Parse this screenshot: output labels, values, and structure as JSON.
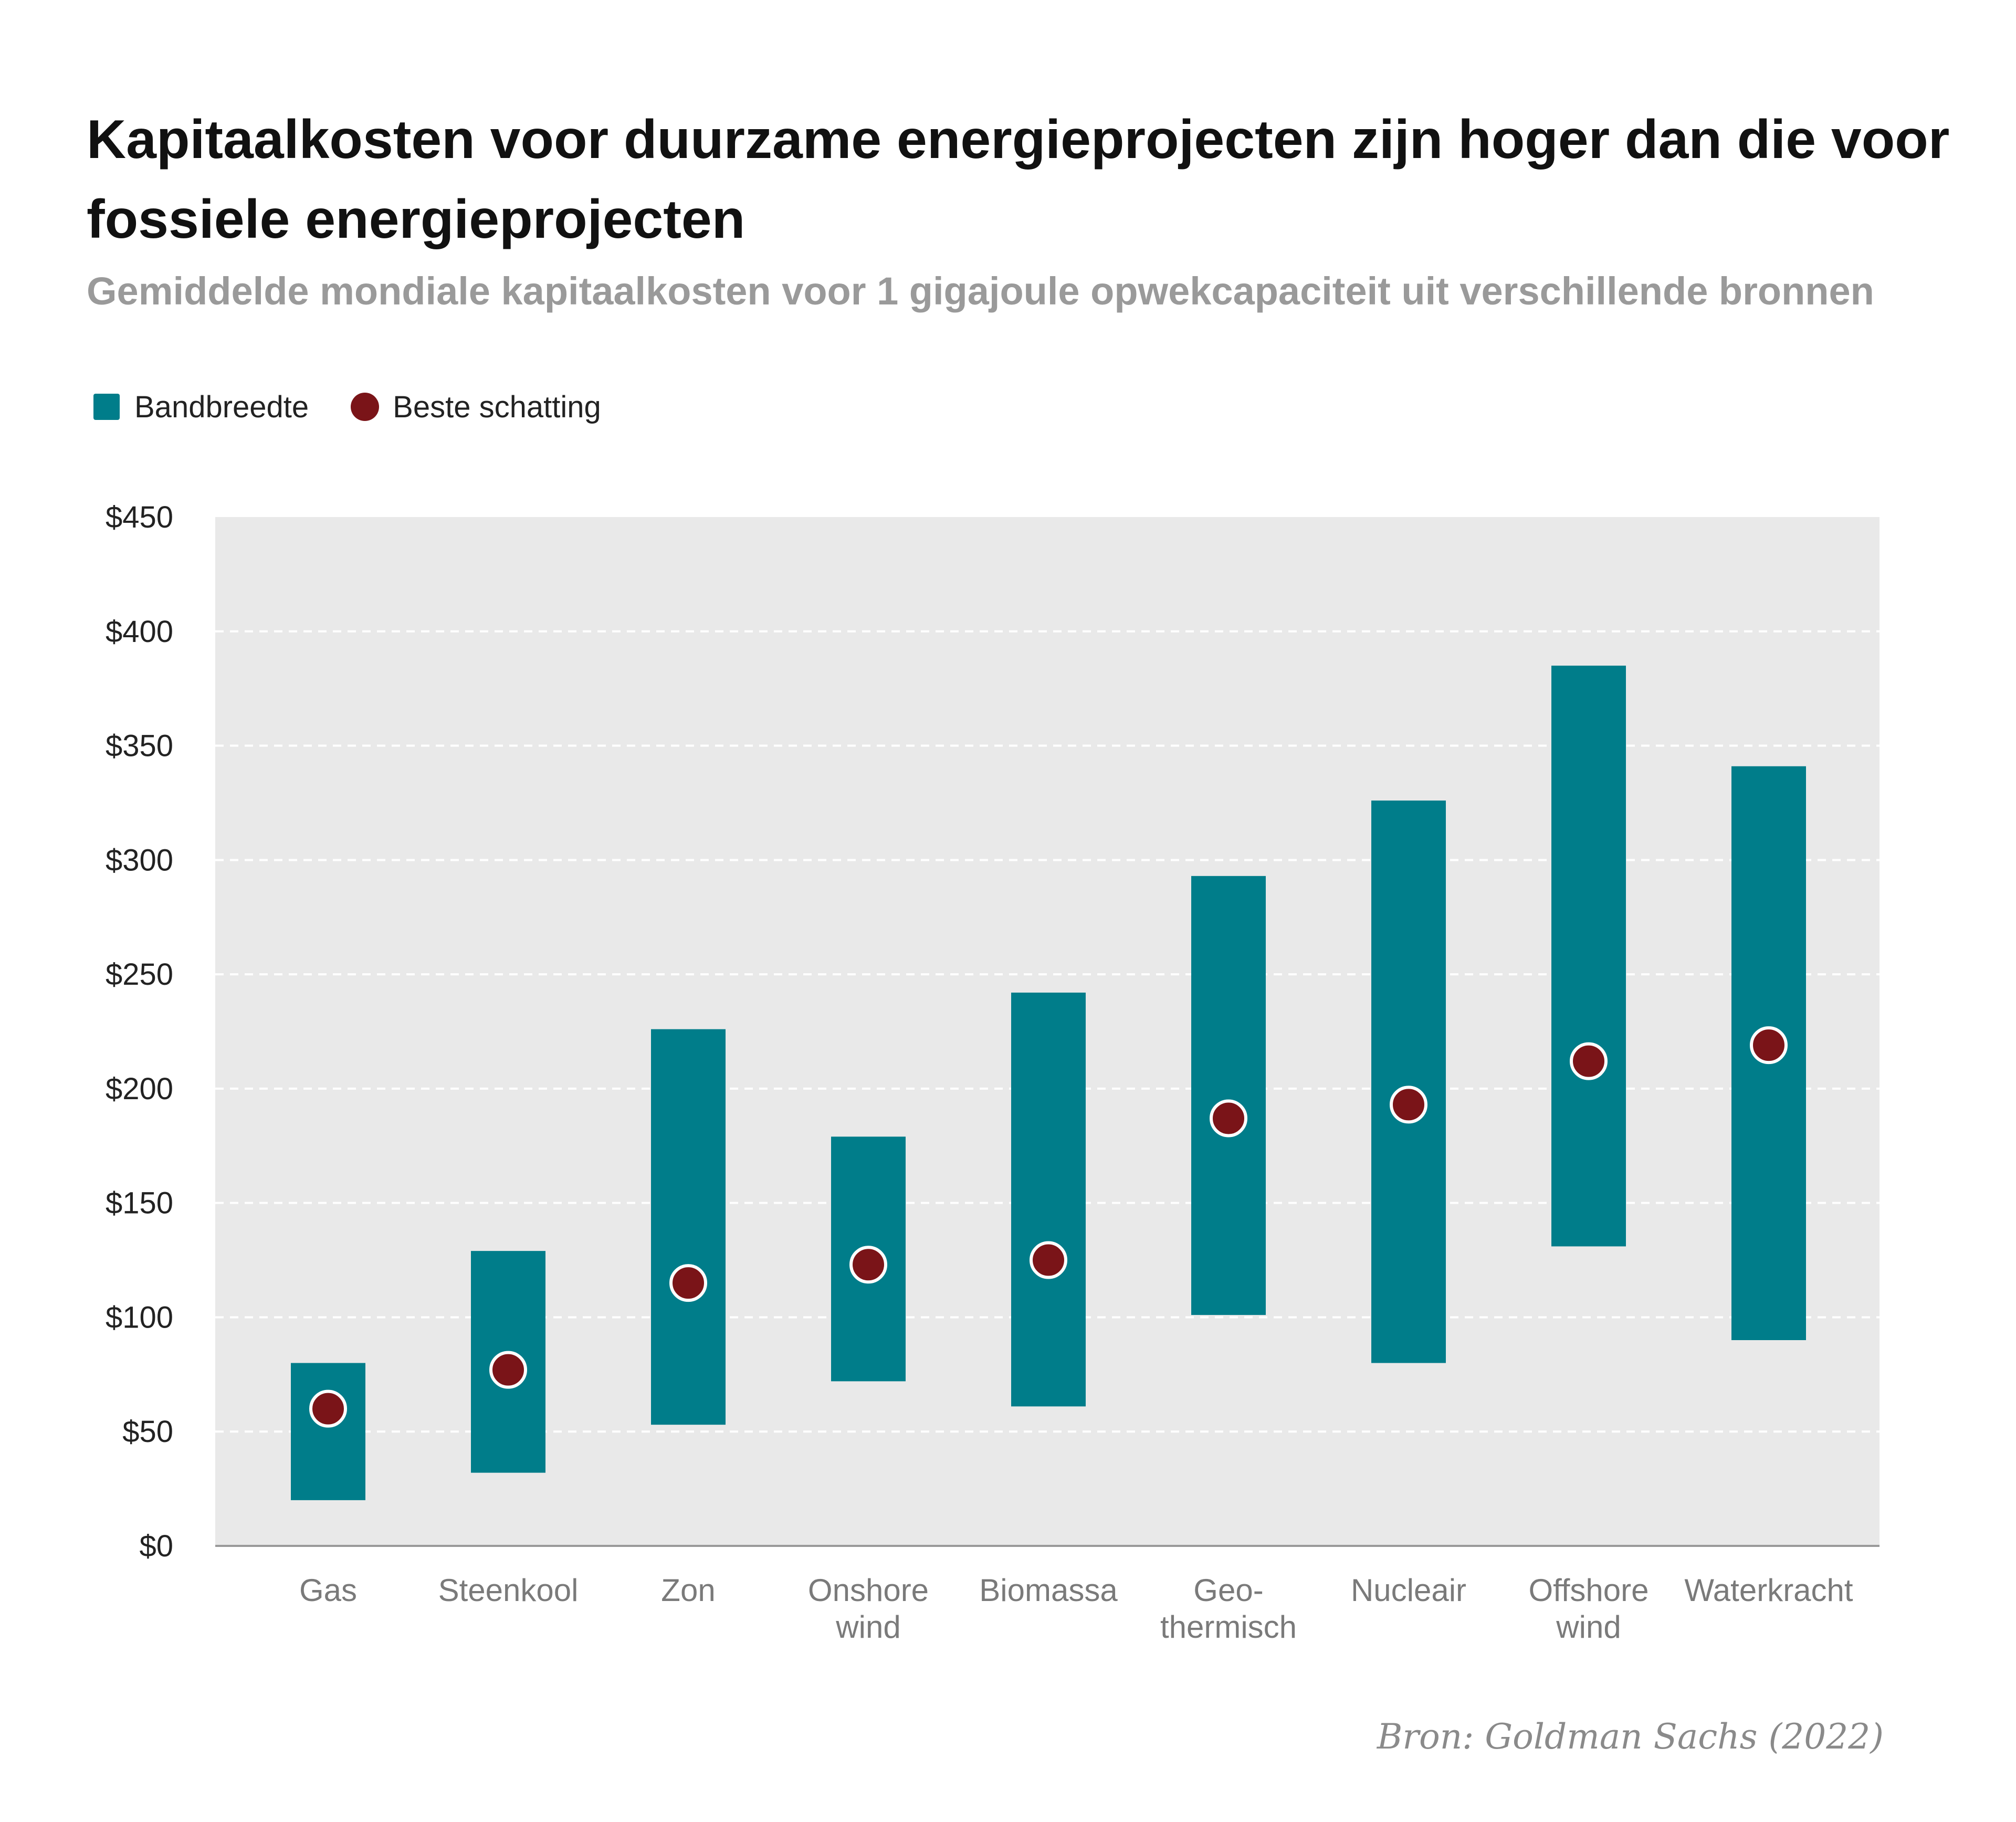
{
  "title": "Kapitaalkosten voor duurzame energieprojecten zijn hoger dan die voor fossiele energieprojecten",
  "subtitle": "Gemiddelde mondiale kapitaalkosten voor 1 gigajoule opwekcapaciteit uit verschillende bronnen",
  "legend": {
    "band": "Bandbreedte",
    "best": "Beste schatting"
  },
  "source": "Bron: Goldman Sachs (2022)",
  "colors": {
    "band": "#007d8a",
    "best": "#7a1418",
    "plot_background": "#e9e9e9",
    "grid": "#ffffff"
  },
  "chart_data": {
    "type": "range-bar",
    "categories": [
      [
        "Gas"
      ],
      [
        "Steenkool"
      ],
      [
        "Zon"
      ],
      [
        "Onshore",
        "wind"
      ],
      [
        "Biomassa"
      ],
      [
        "Geo-",
        "thermisch"
      ],
      [
        "Nucleair"
      ],
      [
        "Offshore",
        "wind"
      ],
      [
        "Waterkracht"
      ]
    ],
    "series": [
      {
        "name": "Bandbreedte",
        "low": [
          20,
          32,
          53,
          72,
          61,
          101,
          80,
          131,
          90
        ],
        "high": [
          80,
          129,
          226,
          179,
          242,
          293,
          326,
          385,
          341
        ]
      },
      {
        "name": "Beste schatting",
        "values": [
          60,
          77,
          115,
          123,
          125,
          187,
          193,
          212,
          219
        ]
      }
    ],
    "ylim": [
      0,
      450
    ],
    "yticks": [
      0,
      50,
      100,
      150,
      200,
      250,
      300,
      350,
      400,
      450
    ],
    "ytick_labels": [
      "$0",
      "$50",
      "$100",
      "$150",
      "$200",
      "$250",
      "$300",
      "$350",
      "$400",
      "$450"
    ],
    "grid": true,
    "legend_position": "top-left"
  }
}
